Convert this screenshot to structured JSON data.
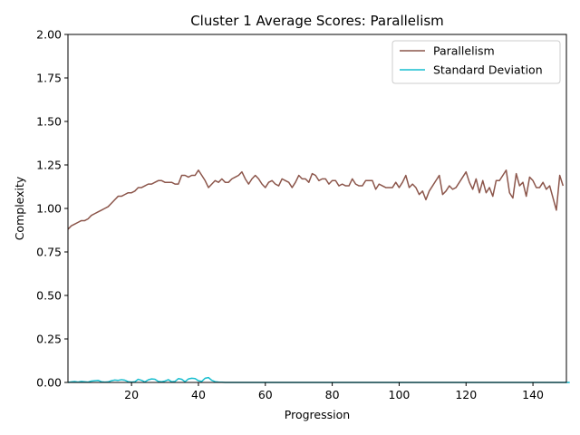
{
  "chart_data": {
    "type": "line",
    "title": "Cluster 1 Average Scores: Parallelism",
    "xlabel": "Progression",
    "ylabel": "Complexity",
    "xlim": [
      1,
      150
    ],
    "ylim": [
      0,
      2
    ],
    "xticks": [
      20,
      40,
      60,
      80,
      100,
      120,
      140
    ],
    "yticks": [
      "0.00",
      "0.25",
      "0.50",
      "0.75",
      "1.00",
      "1.25",
      "1.50",
      "1.75",
      "2.00"
    ],
    "grid": false,
    "legend_position": "top-right",
    "series": [
      {
        "name": "Parallelism",
        "color": "#8c564b",
        "x_start": 1,
        "values": [
          0.88,
          0.9,
          0.91,
          0.92,
          0.93,
          0.93,
          0.94,
          0.96,
          0.97,
          0.98,
          0.99,
          1.0,
          1.01,
          1.03,
          1.05,
          1.07,
          1.07,
          1.08,
          1.09,
          1.09,
          1.1,
          1.12,
          1.12,
          1.13,
          1.14,
          1.14,
          1.15,
          1.16,
          1.16,
          1.15,
          1.15,
          1.15,
          1.14,
          1.14,
          1.19,
          1.19,
          1.18,
          1.19,
          1.19,
          1.22,
          1.19,
          1.16,
          1.12,
          1.14,
          1.16,
          1.15,
          1.17,
          1.15,
          1.15,
          1.17,
          1.18,
          1.19,
          1.21,
          1.17,
          1.14,
          1.17,
          1.19,
          1.17,
          1.14,
          1.12,
          1.15,
          1.16,
          1.14,
          1.13,
          1.17,
          1.16,
          1.15,
          1.12,
          1.15,
          1.19,
          1.17,
          1.17,
          1.15,
          1.2,
          1.19,
          1.16,
          1.17,
          1.17,
          1.14,
          1.16,
          1.16,
          1.13,
          1.14,
          1.13,
          1.13,
          1.17,
          1.14,
          1.13,
          1.13,
          1.16,
          1.16,
          1.16,
          1.11,
          1.14,
          1.13,
          1.12,
          1.12,
          1.12,
          1.15,
          1.12,
          1.15,
          1.19,
          1.12,
          1.14,
          1.12,
          1.08,
          1.1,
          1.05,
          1.1,
          1.13,
          1.16,
          1.19,
          1.08,
          1.1,
          1.13,
          1.11,
          1.12,
          1.15,
          1.18,
          1.21,
          1.15,
          1.11,
          1.17,
          1.09,
          1.16,
          1.09,
          1.12,
          1.07,
          1.16,
          1.16,
          1.19,
          1.22,
          1.09,
          1.06,
          1.2,
          1.13,
          1.15,
          1.07,
          1.18,
          1.16,
          1.12,
          1.12,
          1.15,
          1.11,
          1.13,
          1.06,
          0.99,
          1.19,
          1.13
        ]
      },
      {
        "name": "Standard Deviation",
        "color": "#17becf",
        "x_start": 1,
        "values": [
          0,
          0.003,
          0.005,
          0.002,
          0.006,
          0.004,
          0.002,
          0.008,
          0.01,
          0.012,
          0.004,
          0.002,
          0.003,
          0.01,
          0.014,
          0.012,
          0.016,
          0.013,
          0.004,
          0.002,
          0.004,
          0.018,
          0.012,
          0.003,
          0.015,
          0.02,
          0.018,
          0.006,
          0.004,
          0.008,
          0.016,
          0.004,
          0.006,
          0.022,
          0.018,
          0.004,
          0.02,
          0.024,
          0.022,
          0.01,
          0.006,
          0.024,
          0.028,
          0.012,
          0.004,
          0.002,
          0.001,
          0,
          0,
          0,
          0,
          0,
          0,
          0,
          0,
          0,
          0,
          0,
          0,
          0,
          0,
          0,
          0,
          0,
          0,
          0,
          0,
          0,
          0,
          0,
          0,
          0,
          0,
          0,
          0,
          0,
          0,
          0,
          0,
          0,
          0,
          0,
          0,
          0,
          0,
          0,
          0,
          0,
          0,
          0,
          0,
          0,
          0,
          0,
          0,
          0,
          0,
          0,
          0,
          0,
          0,
          0,
          0,
          0,
          0,
          0,
          0,
          0,
          0,
          0,
          0,
          0,
          0,
          0,
          0,
          0,
          0,
          0,
          0,
          0,
          0,
          0,
          0,
          0,
          0,
          0,
          0,
          0,
          0,
          0,
          0,
          0,
          0,
          0,
          0,
          0,
          0,
          0,
          0,
          0,
          0,
          0,
          0,
          0,
          0,
          0,
          0,
          0,
          0,
          0,
          0
        ]
      }
    ]
  }
}
